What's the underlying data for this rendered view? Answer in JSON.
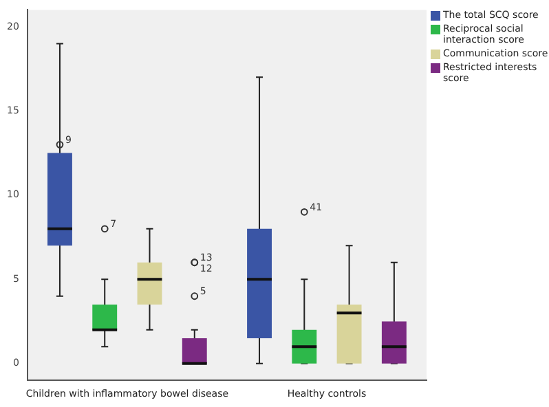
{
  "chart_data": {
    "type": "box",
    "categories": [
      "Children with inflammatory bowel disease",
      "Healthy controls"
    ],
    "series": [
      {
        "name": "The total SCQ score",
        "color": "#3a55a5",
        "boxes": [
          {
            "low": 4,
            "q1": 7,
            "median": 8,
            "q3": 12.5,
            "high": 19,
            "outliers": [
              13
            ]
          },
          {
            "low": 0,
            "q1": 1.5,
            "median": 5,
            "q3": 8,
            "high": 17
          }
        ]
      },
      {
        "name": "Reciprocal social interaction score",
        "color": "#2db84a",
        "boxes": [
          {
            "low": 1,
            "q1": 2,
            "median": 2,
            "q3": 3.5,
            "high": 5,
            "outliers": [
              8
            ]
          },
          {
            "low": 0,
            "q1": 0,
            "median": 1,
            "q3": 2,
            "high": 5,
            "outliers": [
              9
            ]
          }
        ]
      },
      {
        "name": "Communication score",
        "color": "#d9d49a",
        "boxes": [
          {
            "low": 2,
            "q1": 3.5,
            "median": 5,
            "q3": 6,
            "high": 8
          },
          {
            "low": 0,
            "q1": 0,
            "median": 3,
            "q3": 3.5,
            "high": 7
          }
        ]
      },
      {
        "name": "Restricted interests score",
        "color": "#7b2a82",
        "boxes": [
          {
            "low": 0,
            "q1": 0,
            "median": 0,
            "q3": 1.5,
            "high": 2,
            "outliers": [
              6,
              6,
              4
            ]
          },
          {
            "low": 0,
            "q1": 0,
            "median": 1,
            "q3": 2.5,
            "high": 6
          }
        ]
      }
    ],
    "ylim": [
      -1,
      21
    ],
    "yticks": [
      0,
      5,
      10,
      15,
      20
    ],
    "grid": false,
    "legend": "top right",
    "annotations": [
      "9",
      "7",
      "41",
      "13",
      "12",
      "5"
    ]
  }
}
